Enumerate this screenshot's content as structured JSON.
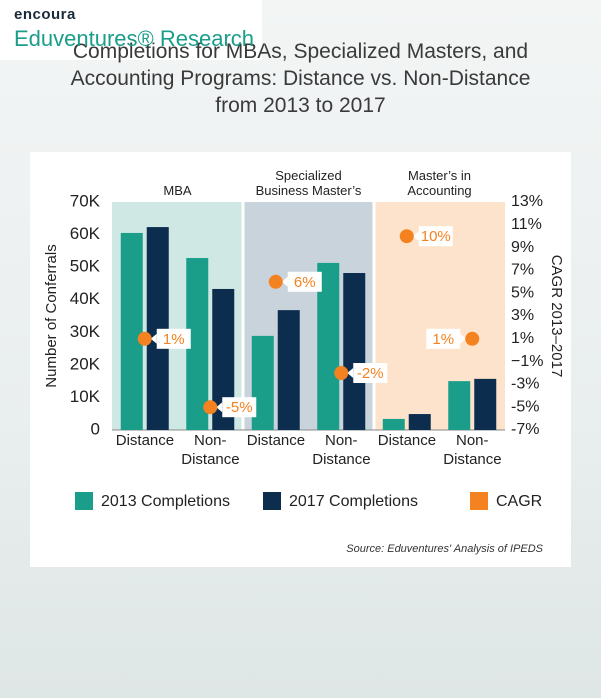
{
  "chart_data": {
    "type": "bar",
    "title": "Completions for MBAs, Specialized Masters, and Accounting Programs: Distance vs. Non-Distance from 2013 to 2017",
    "panels": [
      "MBA",
      "Specialized Business Master’s",
      "Master’s in Accounting"
    ],
    "panel_colors": [
      "#cfe8e3",
      "#c9d3dc",
      "#fde3cc"
    ],
    "categories": [
      "Distance",
      "Non-Distance",
      "Distance",
      "Non-Distance",
      "Distance",
      "Non-Distance"
    ],
    "series": [
      {
        "name": "2013 Completions",
        "color": "#1a9e8a",
        "values": [
          60500,
          52800,
          28900,
          51300,
          3400,
          15000
        ]
      },
      {
        "name": "2017 Completions",
        "color": "#0d2d4f",
        "values": [
          62300,
          43300,
          36800,
          48200,
          4900,
          15700
        ]
      },
      {
        "name": "CAGR",
        "color": "#f58220",
        "axis": "y2",
        "values": [
          1,
          -5,
          6,
          -2,
          10,
          1
        ],
        "value_labels": [
          "1%",
          "-5%",
          "6%",
          "-2%",
          "10%",
          "1%"
        ]
      }
    ],
    "ylabel": "Number of Conferrals",
    "y2label": "CAGR 2013–2017",
    "ylim": [
      0,
      70000
    ],
    "yticks": [
      0,
      {
        "value": 10000,
        "label": "10K"
      },
      {
        "value": 20000,
        "label": "20K"
      },
      {
        "value": 30000,
        "label": "30K"
      },
      {
        "value": 40000,
        "label": "40K"
      },
      {
        "value": 50000,
        "label": "50K"
      },
      {
        "value": 60000,
        "label": "60K"
      },
      {
        "value": 70000,
        "label": "70K"
      }
    ],
    "y2lim": [
      -7,
      13
    ],
    "y2ticks": [
      {
        "value": -7,
        "label": "-7%"
      },
      {
        "value": -5,
        "label": "-5%"
      },
      {
        "value": -3,
        "label": "-3%"
      },
      {
        "value": -1,
        "label": "−1%"
      },
      {
        "value": 1,
        "label": "1%"
      },
      {
        "value": 3,
        "label": "3%"
      },
      {
        "value": 5,
        "label": "5%"
      },
      {
        "value": 7,
        "label": "7%"
      },
      {
        "value": 9,
        "label": "9%"
      },
      {
        "value": 11,
        "label": "11%"
      },
      {
        "value": 13,
        "label": "13%"
      }
    ],
    "source": "Source: Eduventures' Analysis of IPEDS",
    "logo_brand": "encoura",
    "logo_name": "Eduventures® Research"
  }
}
